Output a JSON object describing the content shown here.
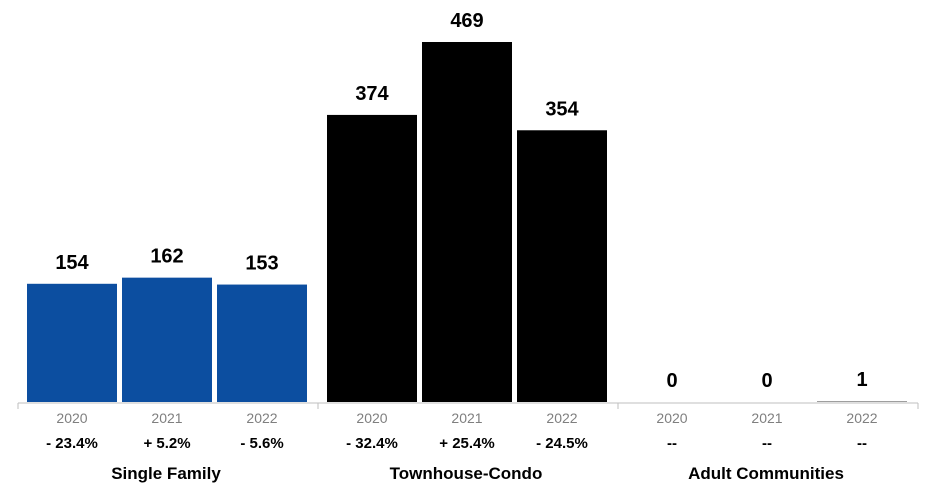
{
  "chart_data": {
    "type": "bar",
    "title": "",
    "xlabel": "",
    "ylabel": "",
    "ylim": [
      0,
      469
    ],
    "grid": false,
    "legend": "none",
    "years": [
      "2020",
      "2021",
      "2022"
    ],
    "groups": [
      {
        "name": "Single Family",
        "color": "#0c4ea0",
        "values": [
          154,
          162,
          153
        ],
        "changes": [
          "- 23.4%",
          "+ 5.2%",
          "- 5.6%"
        ]
      },
      {
        "name": "Townhouse-Condo",
        "color": "#000000",
        "values": [
          374,
          469,
          354
        ],
        "changes": [
          "- 32.4%",
          "+ 25.4%",
          "- 24.5%"
        ]
      },
      {
        "name": "Adult Communities",
        "color": "#808080",
        "values": [
          0,
          0,
          1
        ],
        "changes": [
          "--",
          "--",
          "--"
        ]
      }
    ]
  }
}
